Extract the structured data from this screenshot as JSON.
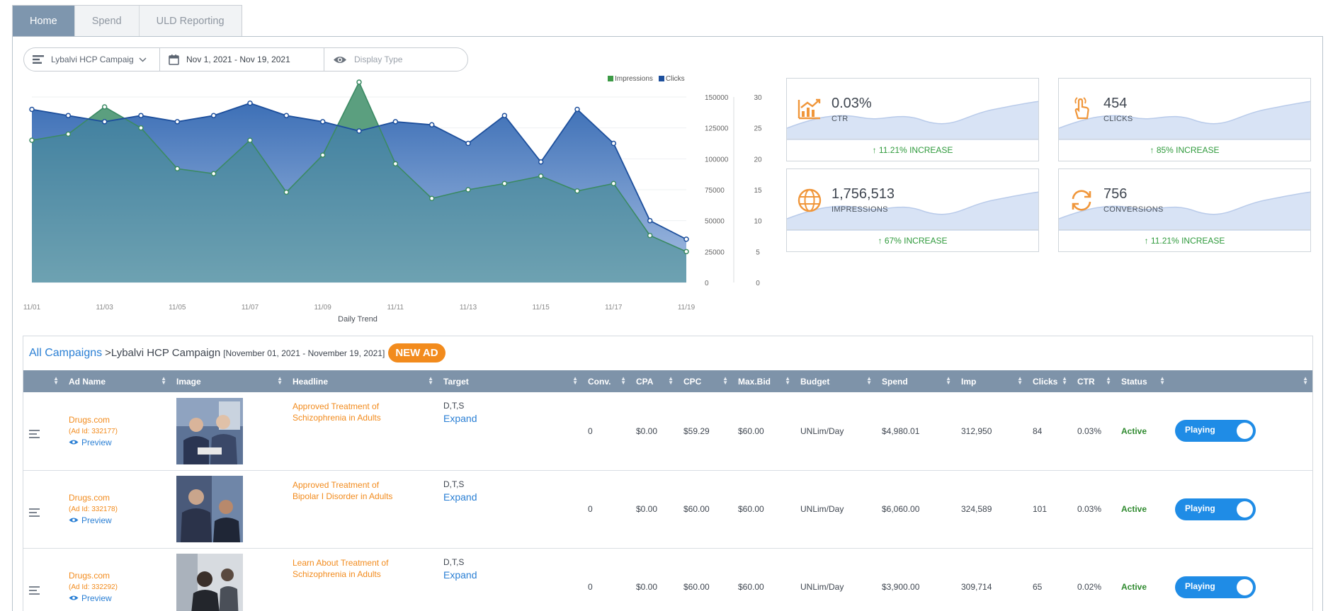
{
  "tabs": [
    {
      "label": "Home",
      "active": true
    },
    {
      "label": "Spend",
      "active": false
    },
    {
      "label": "ULD Reporting",
      "active": false
    }
  ],
  "filters": {
    "campaign": "Lybalvi HCP Campaig",
    "date_range": "Nov 1, 2021 - Nov 19, 2021",
    "display_type_placeholder": "Display Type"
  },
  "chart_data": {
    "type": "area",
    "title": "",
    "xlabel": "Daily Trend",
    "x": [
      "11/01",
      "11/02",
      "11/03",
      "11/04",
      "11/05",
      "11/06",
      "11/07",
      "11/08",
      "11/09",
      "11/10",
      "11/11",
      "11/12",
      "11/13",
      "11/14",
      "11/15",
      "11/16",
      "11/17",
      "11/18",
      "11/19"
    ],
    "x_tick_labels": [
      "11/01",
      "11/03",
      "11/05",
      "11/07",
      "11/09",
      "11/11",
      "11/13",
      "11/15",
      "11/17",
      "11/19"
    ],
    "series": [
      {
        "name": "Impressions",
        "axis": "left",
        "color": "#3c9a45",
        "values": [
          115000,
          120000,
          142000,
          125000,
          92000,
          88000,
          115000,
          73000,
          103000,
          162000,
          96000,
          68000,
          75000,
          80000,
          86000,
          74000,
          80000,
          38000,
          25000
        ]
      },
      {
        "name": "Clicks",
        "axis": "right",
        "color": "#1d4f9c",
        "values": [
          28,
          27,
          26,
          27,
          26,
          27,
          29,
          27,
          26,
          24.5,
          26,
          25.5,
          22.5,
          27,
          19.5,
          28,
          22.5,
          10,
          7
        ]
      }
    ],
    "ylim_left": [
      0,
      150000
    ],
    "yticks_left": [
      0,
      25000,
      50000,
      75000,
      100000,
      125000,
      150000
    ],
    "ylim_right": [
      0,
      30
    ],
    "yticks_right": [
      0,
      5,
      10,
      15,
      20,
      25,
      30
    ],
    "legend": "top-right",
    "grid": true
  },
  "kpis": [
    {
      "value": "0.03%",
      "label": "CTR",
      "change": "11.21% INCREASE",
      "icon": "chart-up-icon"
    },
    {
      "value": "454",
      "label": "CLICKS",
      "change": "85% INCREASE",
      "icon": "pointer-hand-icon"
    },
    {
      "value": "1,756,513",
      "label": "IMPRESSIONS",
      "change": "67% INCREASE",
      "icon": "globe-icon"
    },
    {
      "value": "756",
      "label": "CONVERSIONS",
      "change": "11.21% INCREASE",
      "icon": "refresh-icon"
    }
  ],
  "campaign": {
    "all_link": "All Campaigns",
    "separator": " > ",
    "name": "Lybalvi HCP Campaign",
    "range": "[November 01, 2021 - November 19, 2021]",
    "new_ad": "NEW AD"
  },
  "table": {
    "columns": [
      "",
      "Ad Name",
      "Image",
      "Headline",
      "Target",
      "Conv.",
      "CPA",
      "CPC",
      "Max.Bid",
      "Budget",
      "Spend",
      "Imp",
      "Clicks",
      "CTR",
      "Status",
      ""
    ],
    "rows": [
      {
        "ad_name": "Drugs.com",
        "ad_id": "(Ad Id: 332177)",
        "preview": "Preview",
        "headline": "Approved Treatment of Schizophrenia in Adults",
        "target": "D,T,S",
        "expand": "Expand",
        "conv": "0",
        "cpa": "$0.00",
        "cpc": "$59.29",
        "max_bid": "$60.00",
        "budget": "UNLim/Day",
        "spend": "$4,980.01",
        "imp": "312,950",
        "clicks": "84",
        "ctr": "0.03%",
        "status": "Active",
        "toggle": "Playing"
      },
      {
        "ad_name": "Drugs.com",
        "ad_id": "(Ad Id: 332178)",
        "preview": "Preview",
        "headline": "Approved Treatment of Bipolar I Disorder in Adults",
        "target": "D,T,S",
        "expand": "Expand",
        "conv": "0",
        "cpa": "$0.00",
        "cpc": "$60.00",
        "max_bid": "$60.00",
        "budget": "UNLim/Day",
        "spend": "$6,060.00",
        "imp": "324,589",
        "clicks": "101",
        "ctr": "0.03%",
        "status": "Active",
        "toggle": "Playing"
      },
      {
        "ad_name": "Drugs.com",
        "ad_id": "(Ad Id: 332292)",
        "preview": "Preview",
        "headline": "Learn About Treatment of Schizophrenia in Adults",
        "target": "D,T,S",
        "expand": "Expand",
        "conv": "0",
        "cpa": "$0.00",
        "cpc": "$60.00",
        "max_bid": "$60.00",
        "budget": "UNLim/Day",
        "spend": "$3,900.00",
        "imp": "309,714",
        "clicks": "65",
        "ctr": "0.02%",
        "status": "Active",
        "toggle": "Playing"
      }
    ]
  }
}
